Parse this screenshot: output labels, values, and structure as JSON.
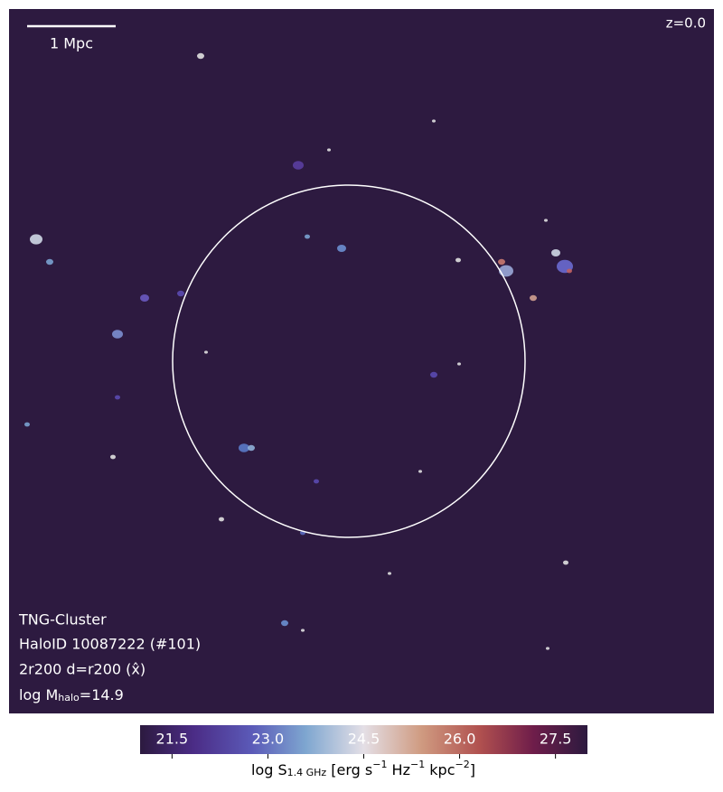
{
  "scale_bar": {
    "label": "1 Mpc"
  },
  "redshift": "z=0.0",
  "info": {
    "simulation": "TNG-Cluster",
    "halo": "HaloID 10087222 (#101)",
    "projection": "2r200 d=r200 (x̂)",
    "mass": {
      "prefix": "log M",
      "sub": "halo",
      "suffix": "=14.9"
    }
  },
  "colorbar": {
    "lim": [
      21,
      28
    ],
    "ticks": [
      21.5,
      {
        "value": 23,
        "label": "23.0"
      },
      24.5,
      {
        "value": 26,
        "label": "26.0"
      },
      27.5
    ],
    "label": {
      "prefix": "log S",
      "sub": "1.4 GHz",
      "unit1": " [erg s",
      "exp1": "−1",
      "unit2": " Hz",
      "exp2": "−1",
      "unit3": " kpc",
      "exp3": "−2",
      "end": "]"
    }
  }
}
